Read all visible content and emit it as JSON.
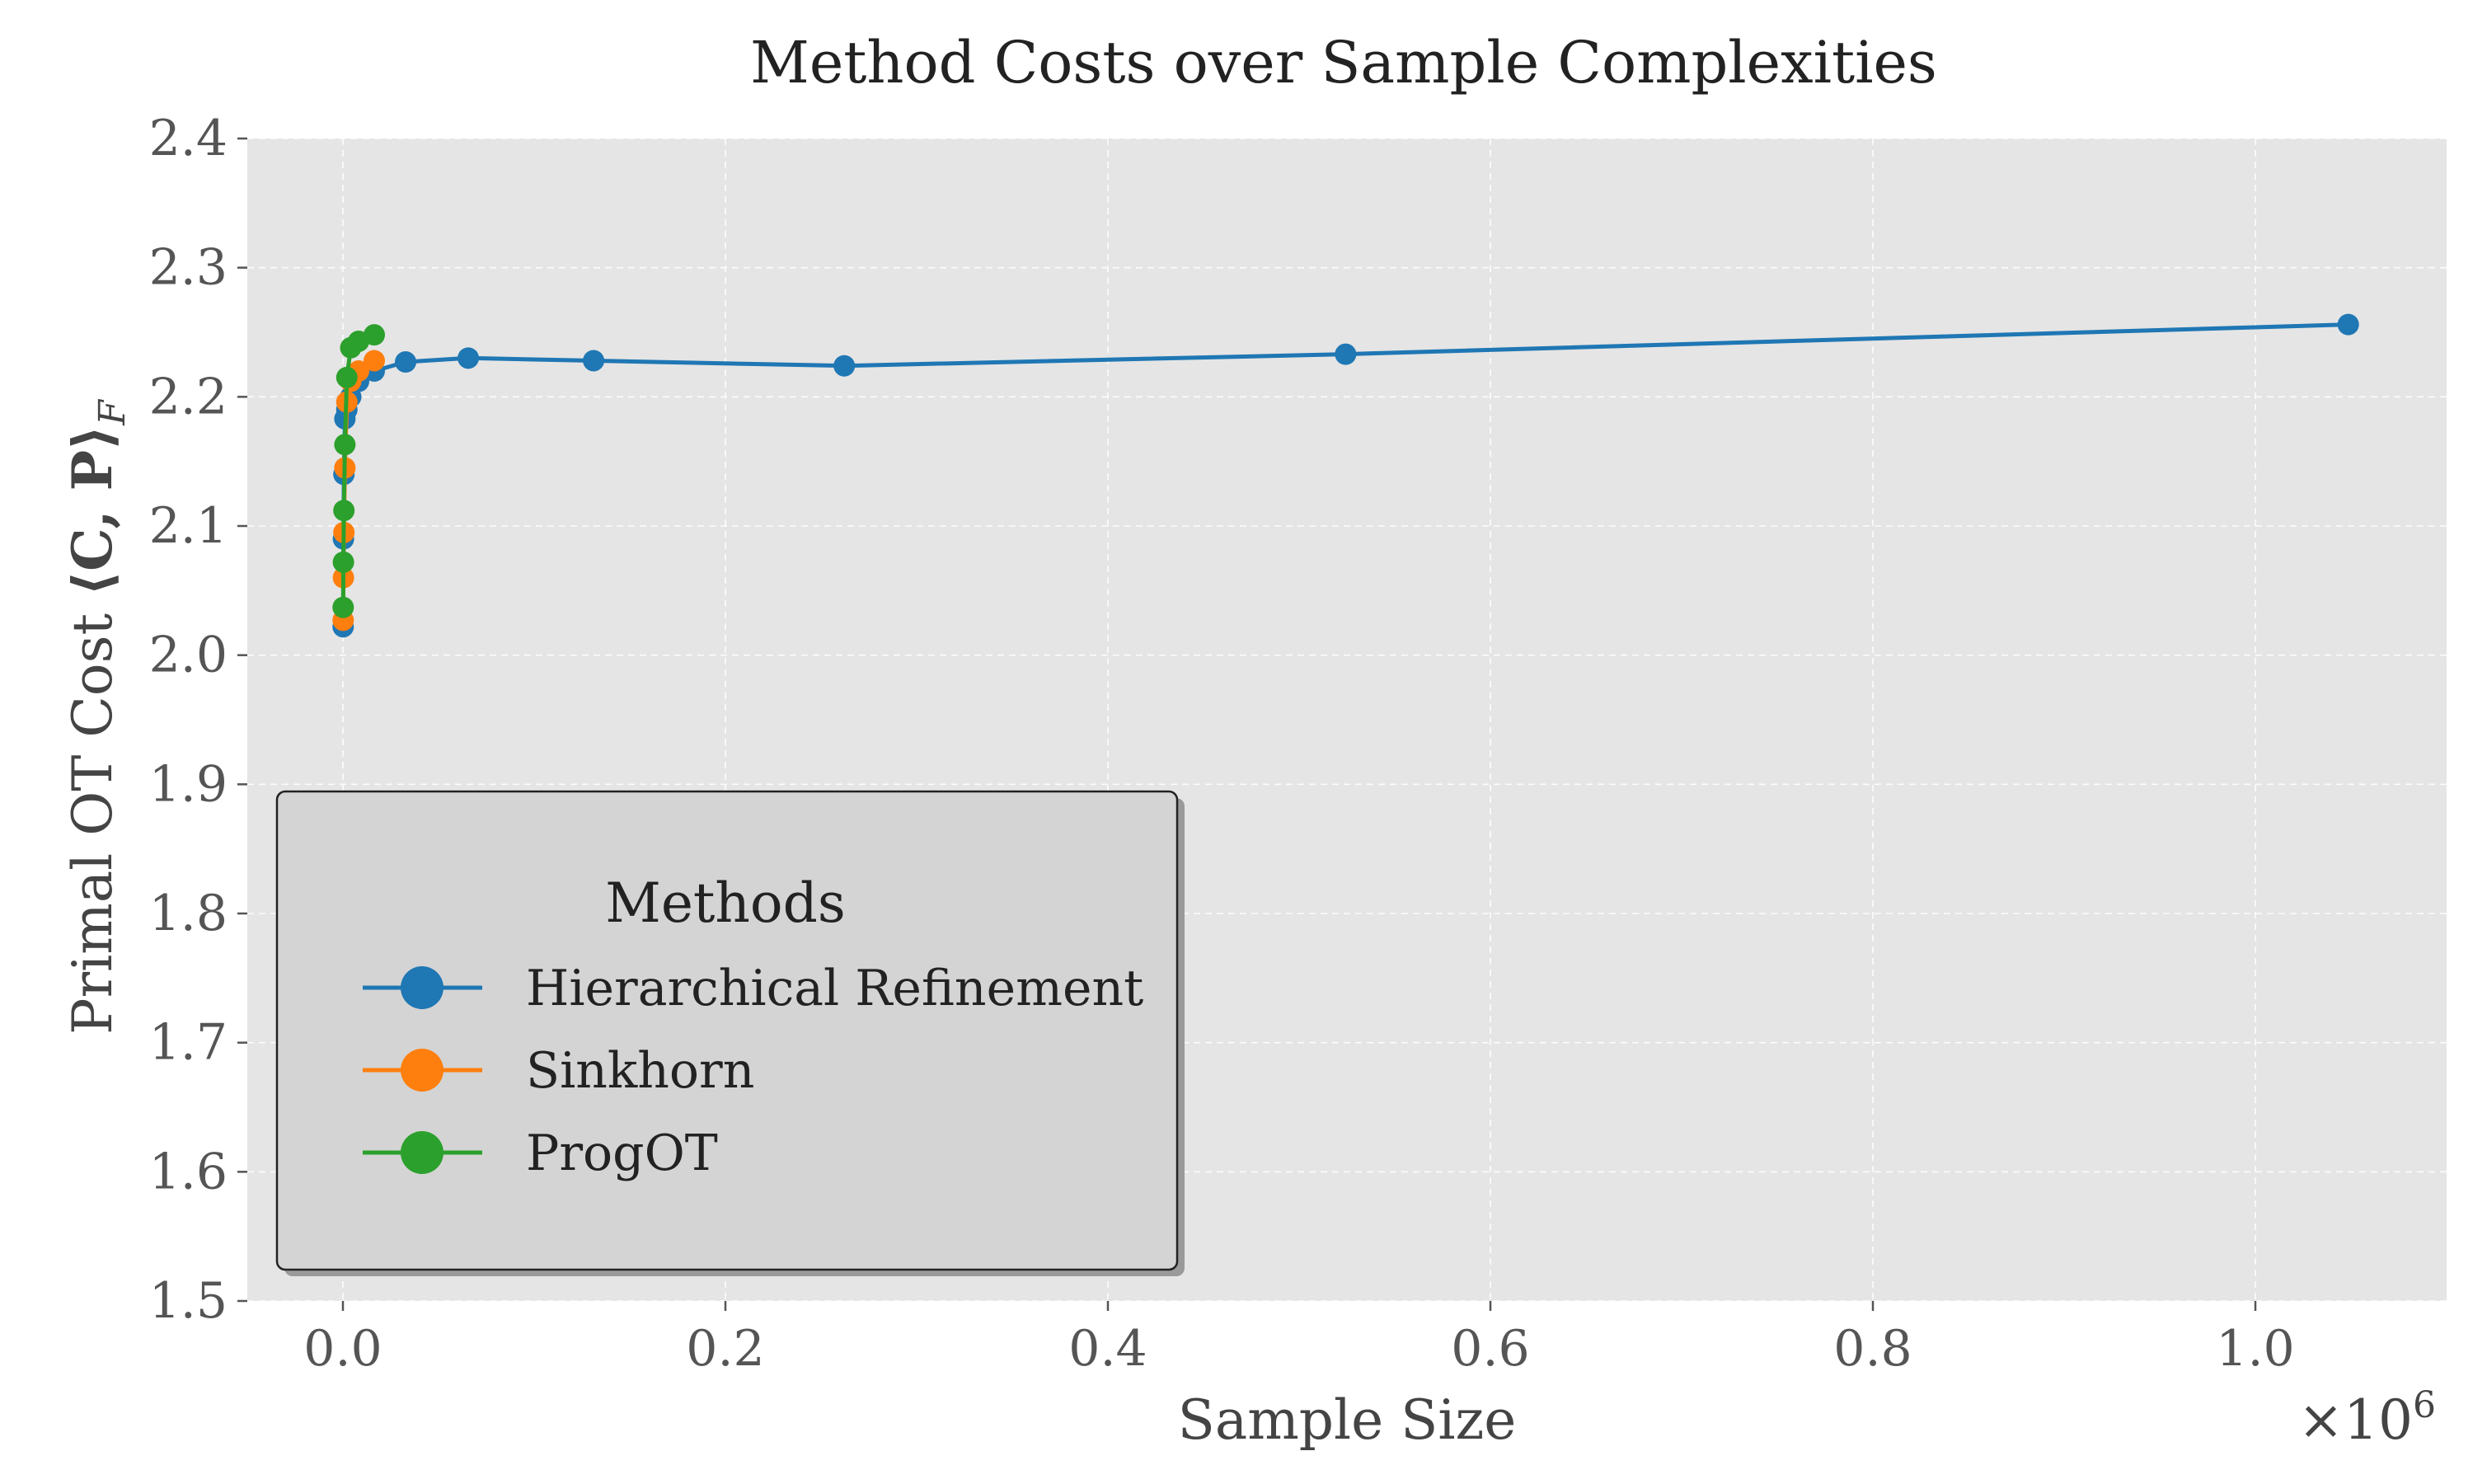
{
  "chart_data": {
    "type": "line",
    "title": "Method Costs over Sample Complexities",
    "xlabel": "Sample Size",
    "ylabel_text": "Primal OT Cost",
    "ylabel_math": "⟨C, P⟩",
    "ylabel_subscript": "F",
    "x_offset_label": "×10",
    "x_offset_exponent": "6",
    "x_scale": 1000000,
    "xlim": [
      -0.05,
      1.1
    ],
    "ylim": [
      1.5,
      2.4
    ],
    "x_ticks": [
      0.0,
      0.2,
      0.4,
      0.6,
      0.8,
      1.0
    ],
    "x_tick_labels": [
      "0.0",
      "0.2",
      "0.4",
      "0.6",
      "0.8",
      "1.0"
    ],
    "y_ticks": [
      1.5,
      1.6,
      1.7,
      1.8,
      1.9,
      2.0,
      2.1,
      2.2,
      2.3,
      2.4
    ],
    "y_tick_labels": [
      "1.5",
      "1.6",
      "1.7",
      "1.8",
      "1.9",
      "2.0",
      "2.1",
      "2.2",
      "2.3",
      "2.4"
    ],
    "grid": true,
    "legend_title": "Methods",
    "legend_position": "lower-left",
    "series": [
      {
        "name": "Hierarchical Refinement",
        "color": "#1f77b4",
        "x": [
          0.000128,
          0.000256,
          0.000512,
          0.001024,
          0.002048,
          0.004096,
          0.008192,
          0.016384,
          0.032768,
          0.065536,
          0.131072,
          0.262144,
          0.524288,
          1.048576
        ],
        "y": [
          2.022,
          2.09,
          2.14,
          2.183,
          2.19,
          2.2,
          2.212,
          2.22,
          2.227,
          2.23,
          2.228,
          2.224,
          2.233,
          2.256
        ]
      },
      {
        "name": "Sinkhorn",
        "color": "#ff7f0e",
        "x": [
          0.000128,
          0.000256,
          0.000512,
          0.001024,
          0.002048,
          0.004096,
          0.008192,
          0.016384
        ],
        "y": [
          2.027,
          2.06,
          2.095,
          2.145,
          2.196,
          2.212,
          2.22,
          2.228
        ]
      },
      {
        "name": "ProgOT",
        "color": "#2ca02c",
        "x": [
          0.000128,
          0.000256,
          0.000512,
          0.001024,
          0.002048,
          0.004096,
          0.008192,
          0.016384
        ],
        "y": [
          2.037,
          2.072,
          2.112,
          2.163,
          2.215,
          2.238,
          2.243,
          2.248
        ]
      }
    ]
  }
}
